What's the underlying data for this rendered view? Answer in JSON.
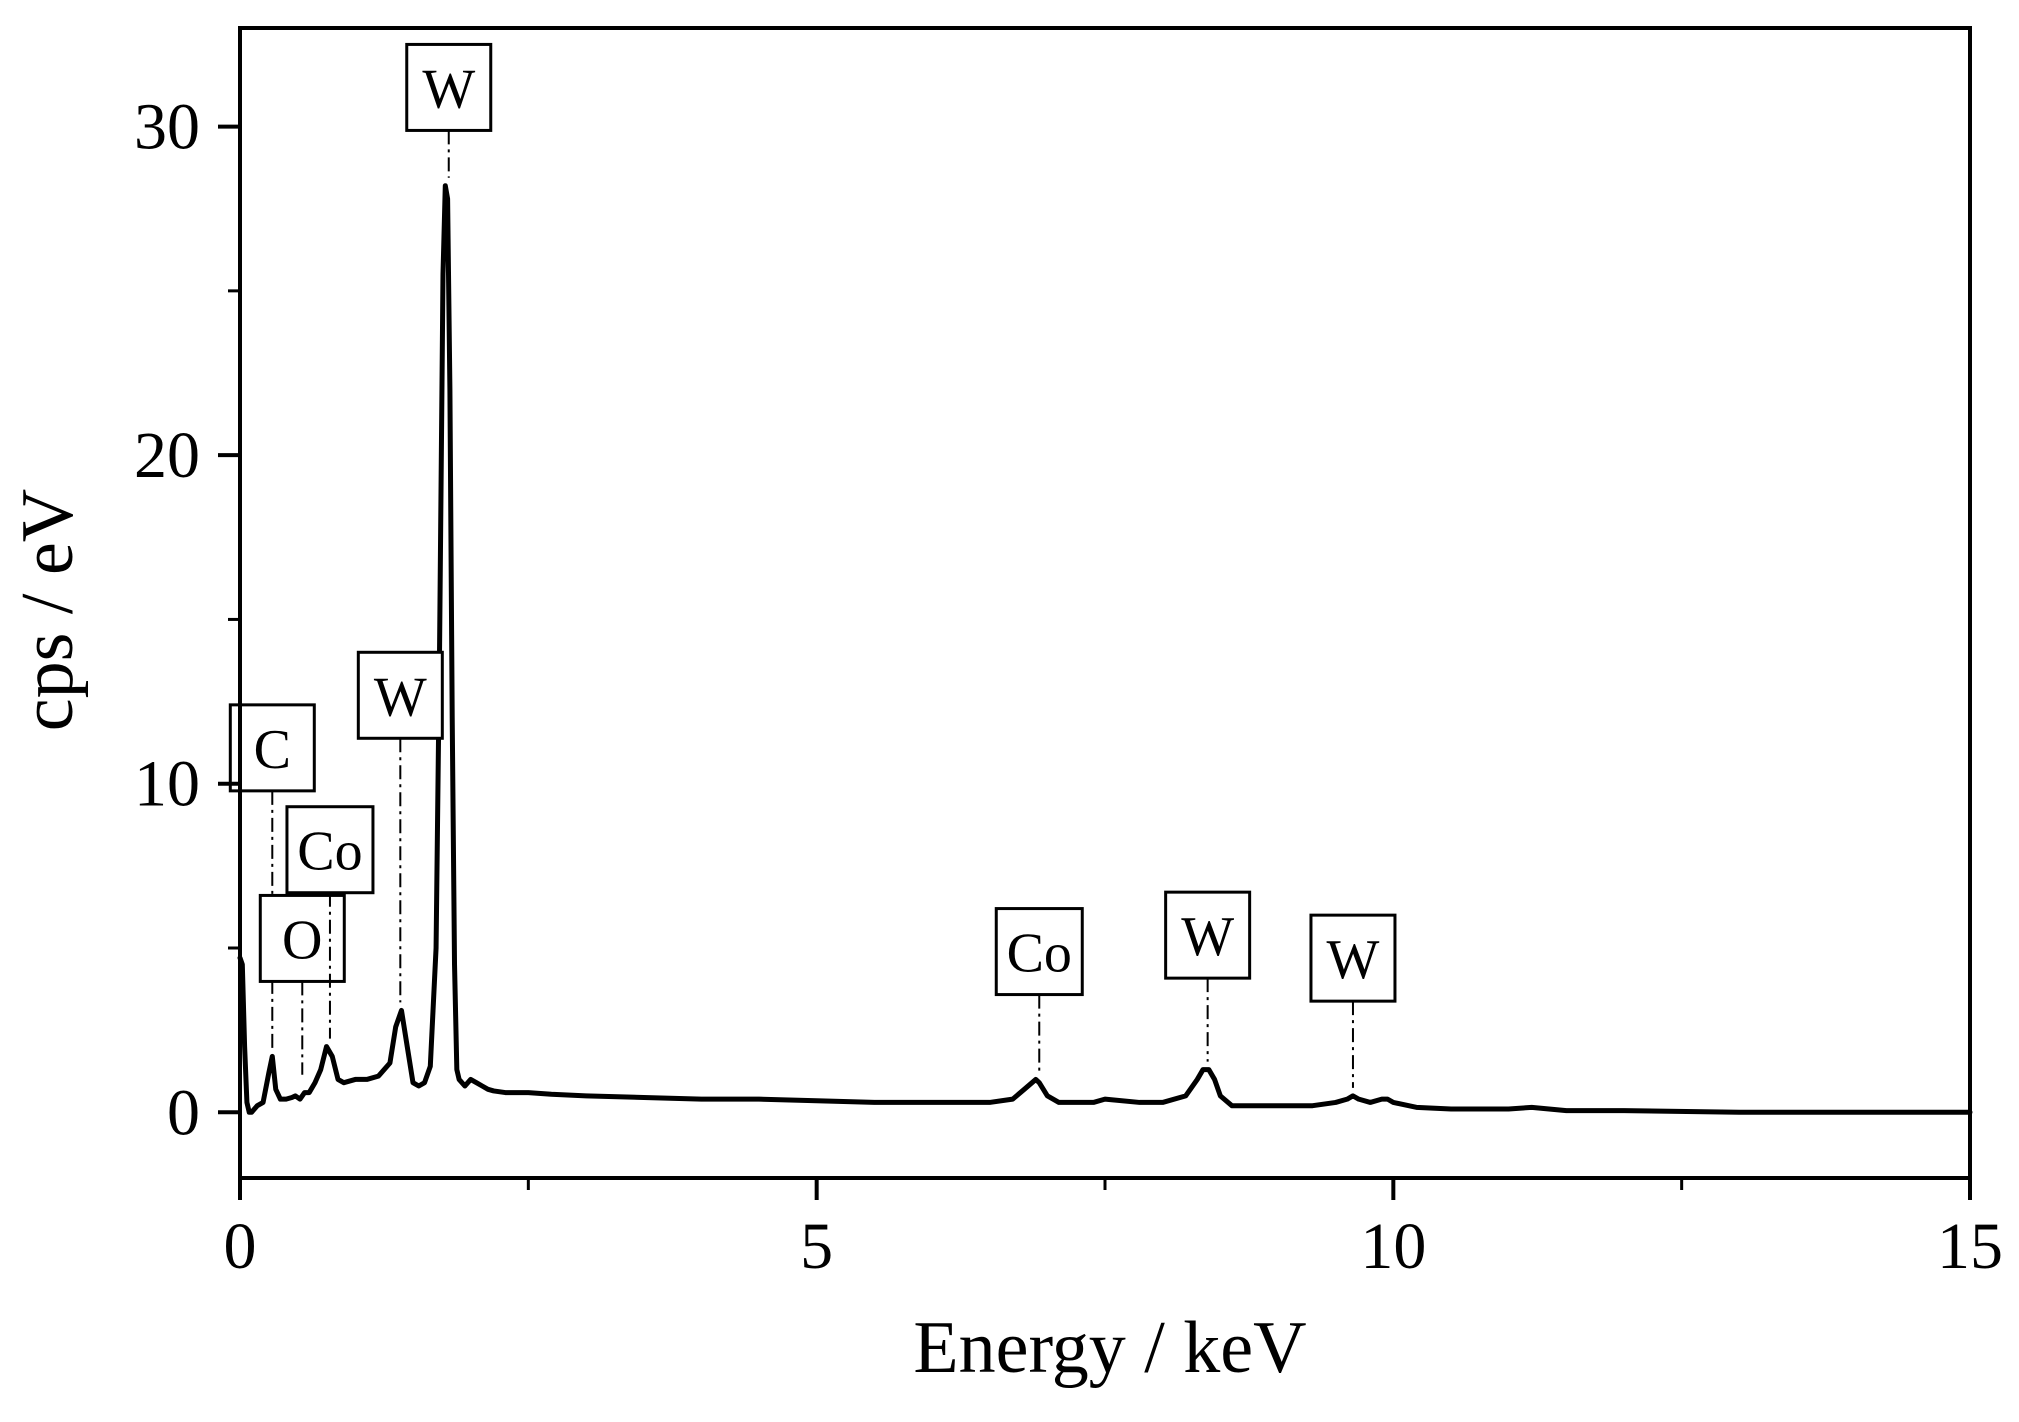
{
  "chart_data": {
    "type": "line",
    "xlabel": "Energy / keV",
    "ylabel": "cps / eV",
    "xlim": [
      0,
      15
    ],
    "ylim": [
      -2,
      33
    ],
    "x_ticks": [
      0,
      5,
      10,
      15
    ],
    "y_ticks": [
      0,
      10,
      20,
      30
    ],
    "x_tick_labels": [
      "0",
      "5",
      "10",
      "15"
    ],
    "y_tick_labels": [
      "0",
      "10",
      "20",
      "30"
    ],
    "grid": false,
    "legend": "none",
    "line_color": "#000000",
    "series": [
      {
        "x": [
          0.0,
          0.02,
          0.04,
          0.06,
          0.08,
          0.1,
          0.15,
          0.2,
          0.25,
          0.28,
          0.31,
          0.35,
          0.4,
          0.45,
          0.48,
          0.52,
          0.56,
          0.6,
          0.65,
          0.7,
          0.75,
          0.8,
          0.85,
          0.9,
          1.0,
          1.1,
          1.2,
          1.3,
          1.35,
          1.4,
          1.45,
          1.5,
          1.55,
          1.6,
          1.65,
          1.7,
          1.73,
          1.76,
          1.78,
          1.8,
          1.82,
          1.84,
          1.86,
          1.88,
          1.9,
          1.95,
          2.0,
          2.05,
          2.1,
          2.15,
          2.2,
          2.3,
          2.4,
          2.5,
          2.7,
          3.0,
          3.5,
          4.0,
          4.5,
          5.0,
          5.5,
          6.0,
          6.5,
          6.7,
          6.8,
          6.9,
          6.93,
          7.0,
          7.1,
          7.2,
          7.4,
          7.5,
          7.8,
          8.0,
          8.2,
          8.3,
          8.35,
          8.4,
          8.45,
          8.5,
          8.6,
          8.8,
          9.0,
          9.3,
          9.5,
          9.6,
          9.65,
          9.7,
          9.8,
          9.9,
          9.95,
          10.0,
          10.2,
          10.5,
          11.0,
          11.2,
          11.5,
          12.0,
          13.0,
          14.0,
          15.0
        ],
        "y": [
          4.7,
          4.5,
          2.0,
          0.3,
          0.0,
          0.0,
          0.2,
          0.3,
          1.2,
          1.7,
          0.7,
          0.4,
          0.4,
          0.45,
          0.5,
          0.4,
          0.6,
          0.6,
          0.9,
          1.3,
          2.0,
          1.7,
          1.0,
          0.9,
          1.0,
          1.0,
          1.1,
          1.5,
          2.6,
          3.1,
          2.0,
          0.9,
          0.8,
          0.9,
          1.4,
          5.0,
          14.0,
          25.5,
          28.2,
          27.8,
          22.0,
          12.0,
          4.5,
          1.3,
          1.0,
          0.8,
          1.0,
          0.9,
          0.8,
          0.7,
          0.65,
          0.6,
          0.6,
          0.6,
          0.55,
          0.5,
          0.45,
          0.4,
          0.4,
          0.35,
          0.3,
          0.3,
          0.3,
          0.4,
          0.7,
          1.0,
          0.9,
          0.5,
          0.3,
          0.3,
          0.3,
          0.4,
          0.3,
          0.3,
          0.5,
          1.0,
          1.3,
          1.3,
          1.0,
          0.5,
          0.2,
          0.2,
          0.2,
          0.2,
          0.3,
          0.4,
          0.5,
          0.4,
          0.3,
          0.4,
          0.4,
          0.3,
          0.15,
          0.1,
          0.1,
          0.15,
          0.05,
          0.05,
          0.0,
          0.0,
          0.0
        ]
      }
    ],
    "annotations": [
      {
        "text": "C",
        "x": 0.28,
        "y_top": 12.4
      },
      {
        "text": "O",
        "x": 0.54,
        "y_top": 6.6
      },
      {
        "text": "Co",
        "x": 0.78,
        "y_top": 9.3
      },
      {
        "text": "W",
        "x": 1.39,
        "y_top": 14.0
      },
      {
        "text": "W",
        "x": 1.81,
        "y_top": 32.5
      },
      {
        "text": "Co",
        "x": 6.93,
        "y_top": 6.2
      },
      {
        "text": "W",
        "x": 8.39,
        "y_top": 6.7
      },
      {
        "text": "W",
        "x": 9.65,
        "y_top": 6.0
      }
    ]
  }
}
